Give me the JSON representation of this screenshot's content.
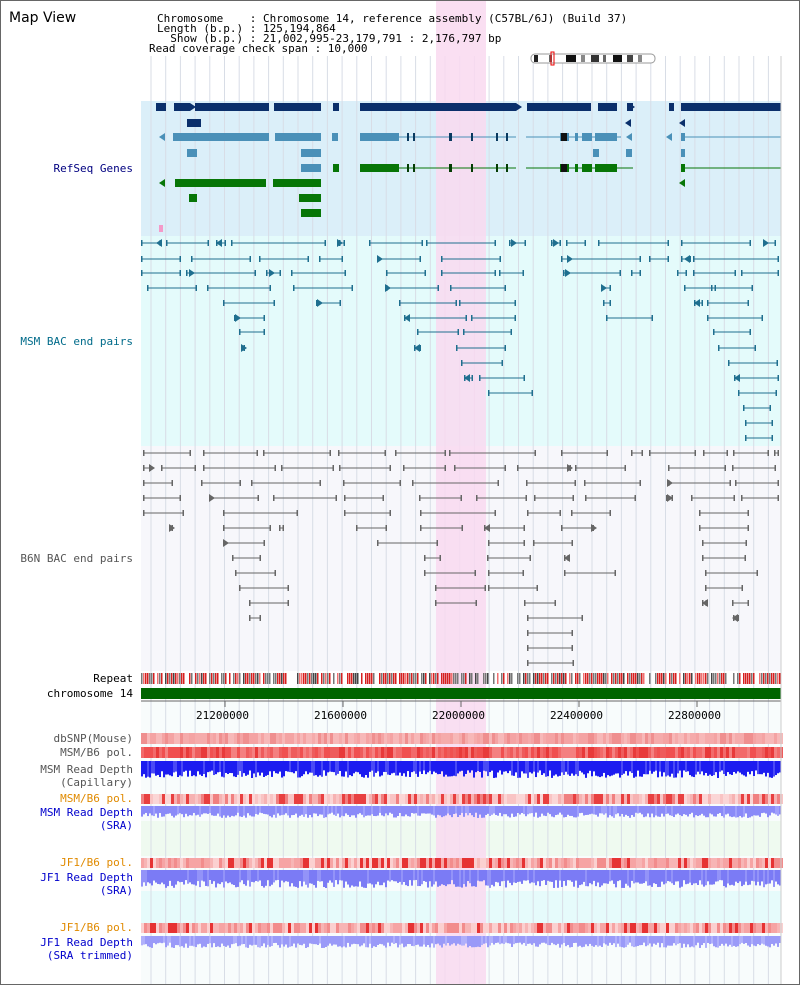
{
  "view_title": "Map View",
  "header": {
    "line1": "Chromosome    : Chromosome 14, reference assembly (C57BL/6J) (Build 37)",
    "line2": "Length (b.p.) : 125,194,864",
    "line3": "  Show (b.p.) : 21,002,995-23,179,791 : 2,176,797 bp",
    "line4": "Read coverage check span : 10,000"
  },
  "tracks": {
    "refseq": "RefSeq Genes",
    "msm_bac": "MSM BAC end pairs",
    "b6n_bac": "B6N BAC end pairs",
    "repeat": "Repeat",
    "chromosome": "chromosome 14",
    "dbsnp": "dbSNP(Mouse)",
    "msm_b6_pol_1": "MSM/B6 pol.",
    "msm_read_depth_cap_1": "MSM Read Depth",
    "msm_read_depth_cap_2": "(Capillary)",
    "msm_b6_pol_2": "MSM/B6 pol.",
    "msm_read_depth_sra_1": "MSM Read Depth",
    "msm_read_depth_sra_2": "(SRA)",
    "jf1_b6_pol_1": "JF1/B6 pol.",
    "jf1_read_depth_sra_1": "JF1 Read Depth",
    "jf1_read_depth_sra_2": "(SRA)",
    "jf1_b6_pol_2": "JF1/B6 pol.",
    "jf1_read_depth_trim_1": "JF1 Read Depth",
    "jf1_read_depth_trim_2": "(SRA trimmed)"
  },
  "axis_ticks": [
    "21200000",
    "21600000",
    "22000000",
    "22400000",
    "22800000"
  ],
  "colors": {
    "refseq_bg": "#dbeff9",
    "msm_bg": "#e4fbfb",
    "b6n_bg": "#f7f7fb",
    "highlight": "#f9d9f0",
    "gene_navy": "#0b2f6b",
    "gene_steel": "#4a90b8",
    "gene_green": "#077607",
    "msm_pair": "#1f6f8f",
    "b6n_pair": "#666666",
    "chrom_bar": "#006400",
    "label_navy": "#000080",
    "label_teal": "#006b8a",
    "label_gray": "#555555",
    "label_orange": "#e08a00",
    "label_blue": "#0000cc"
  },
  "icons": {
    "chromosome_ideogram": "chromosome-ideogram-icon"
  }
}
